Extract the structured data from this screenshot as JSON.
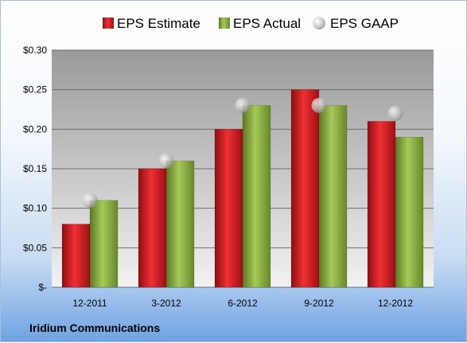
{
  "chart_data": {
    "type": "bar",
    "categories": [
      "12-2011",
      "3-2012",
      "6-2012",
      "9-2012",
      "12-2012"
    ],
    "series": [
      {
        "name": "EPS Estimate",
        "kind": "bar",
        "color": "#d9171c",
        "values": [
          0.08,
          0.15,
          0.2,
          0.25,
          0.21
        ]
      },
      {
        "name": "EPS Actual",
        "kind": "bar",
        "color": "#8cb040",
        "values": [
          0.11,
          0.16,
          0.23,
          0.23,
          0.19
        ]
      },
      {
        "name": "EPS GAAP",
        "kind": "scatter",
        "color": "#b8b8b8",
        "values": [
          0.11,
          0.16,
          0.23,
          0.23,
          0.22
        ]
      }
    ],
    "ylim": [
      0,
      0.3
    ],
    "yticks": [
      0,
      0.05,
      0.1,
      0.15,
      0.2,
      0.25,
      0.3
    ],
    "ytick_labels": [
      "$-",
      "$0.05",
      "$0.10",
      "$0.15",
      "$0.20",
      "$0.25",
      "$0.30"
    ],
    "grid": true,
    "legend": "top"
  },
  "footer": {
    "company": "Iridium Communications"
  }
}
